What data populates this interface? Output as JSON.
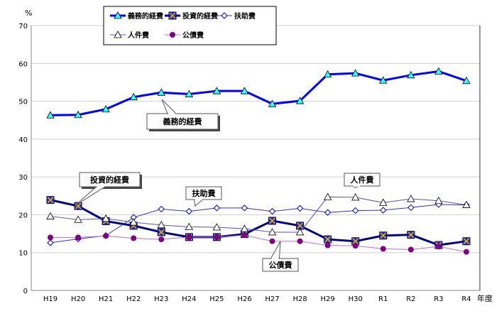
{
  "chart_data": {
    "type": "line",
    "ylabel": "%",
    "xlabel": "年度",
    "ylim": [
      0,
      70
    ],
    "yticks": [
      0,
      10,
      20,
      30,
      40,
      50,
      60,
      70
    ],
    "grid": true,
    "legend_placement": "top-left",
    "categories": [
      "H19",
      "H20",
      "H21",
      "H22",
      "H23",
      "H24",
      "H25",
      "H26",
      "H27",
      "H28",
      "H29",
      "H30",
      "R1",
      "R2",
      "R3",
      "R4"
    ],
    "series": [
      {
        "name": "義務的経費",
        "color": "#0000ff",
        "marker": "triangle-cyan",
        "values": [
          46.3,
          46.4,
          47.9,
          51.1,
          52.3,
          51.9,
          52.7,
          52.7,
          49.3,
          50.1,
          57.1,
          57.4,
          55.5,
          56.9,
          57.9,
          55.4
        ]
      },
      {
        "name": "投資的経費",
        "color": "#000080",
        "marker": "square-x",
        "values": [
          23.9,
          22.3,
          18.3,
          17.1,
          15.4,
          14.1,
          14.1,
          14.9,
          18.4,
          17.1,
          13.5,
          13.0,
          14.5,
          14.7,
          12.0,
          13.0
        ]
      },
      {
        "name": "扶助費",
        "color": "#3333cc",
        "marker": "diamond-open",
        "values": [
          12.6,
          13.6,
          14.5,
          19.3,
          21.5,
          20.9,
          21.8,
          21.8,
          20.9,
          21.7,
          20.6,
          21.1,
          21.2,
          21.9,
          22.7,
          22.6
        ]
      },
      {
        "name": "人件費",
        "color": "#5555bb",
        "marker": "triangle-open",
        "values": [
          19.6,
          18.7,
          19.0,
          18.0,
          17.3,
          16.8,
          16.7,
          16.3,
          15.4,
          15.4,
          24.7,
          24.6,
          23.2,
          24.2,
          23.7,
          22.6
        ]
      },
      {
        "name": "公債費",
        "color": "#cc66cc",
        "marker": "circle-purple",
        "values": [
          14.0,
          14.0,
          14.4,
          13.8,
          13.5,
          14.1,
          14.1,
          14.6,
          13.0,
          13.0,
          11.9,
          11.8,
          11.0,
          10.8,
          11.6,
          10.2
        ]
      }
    ],
    "annotations": [
      "義務的経費",
      "投資的経費",
      "扶助費",
      "人件費",
      "公債費"
    ]
  }
}
